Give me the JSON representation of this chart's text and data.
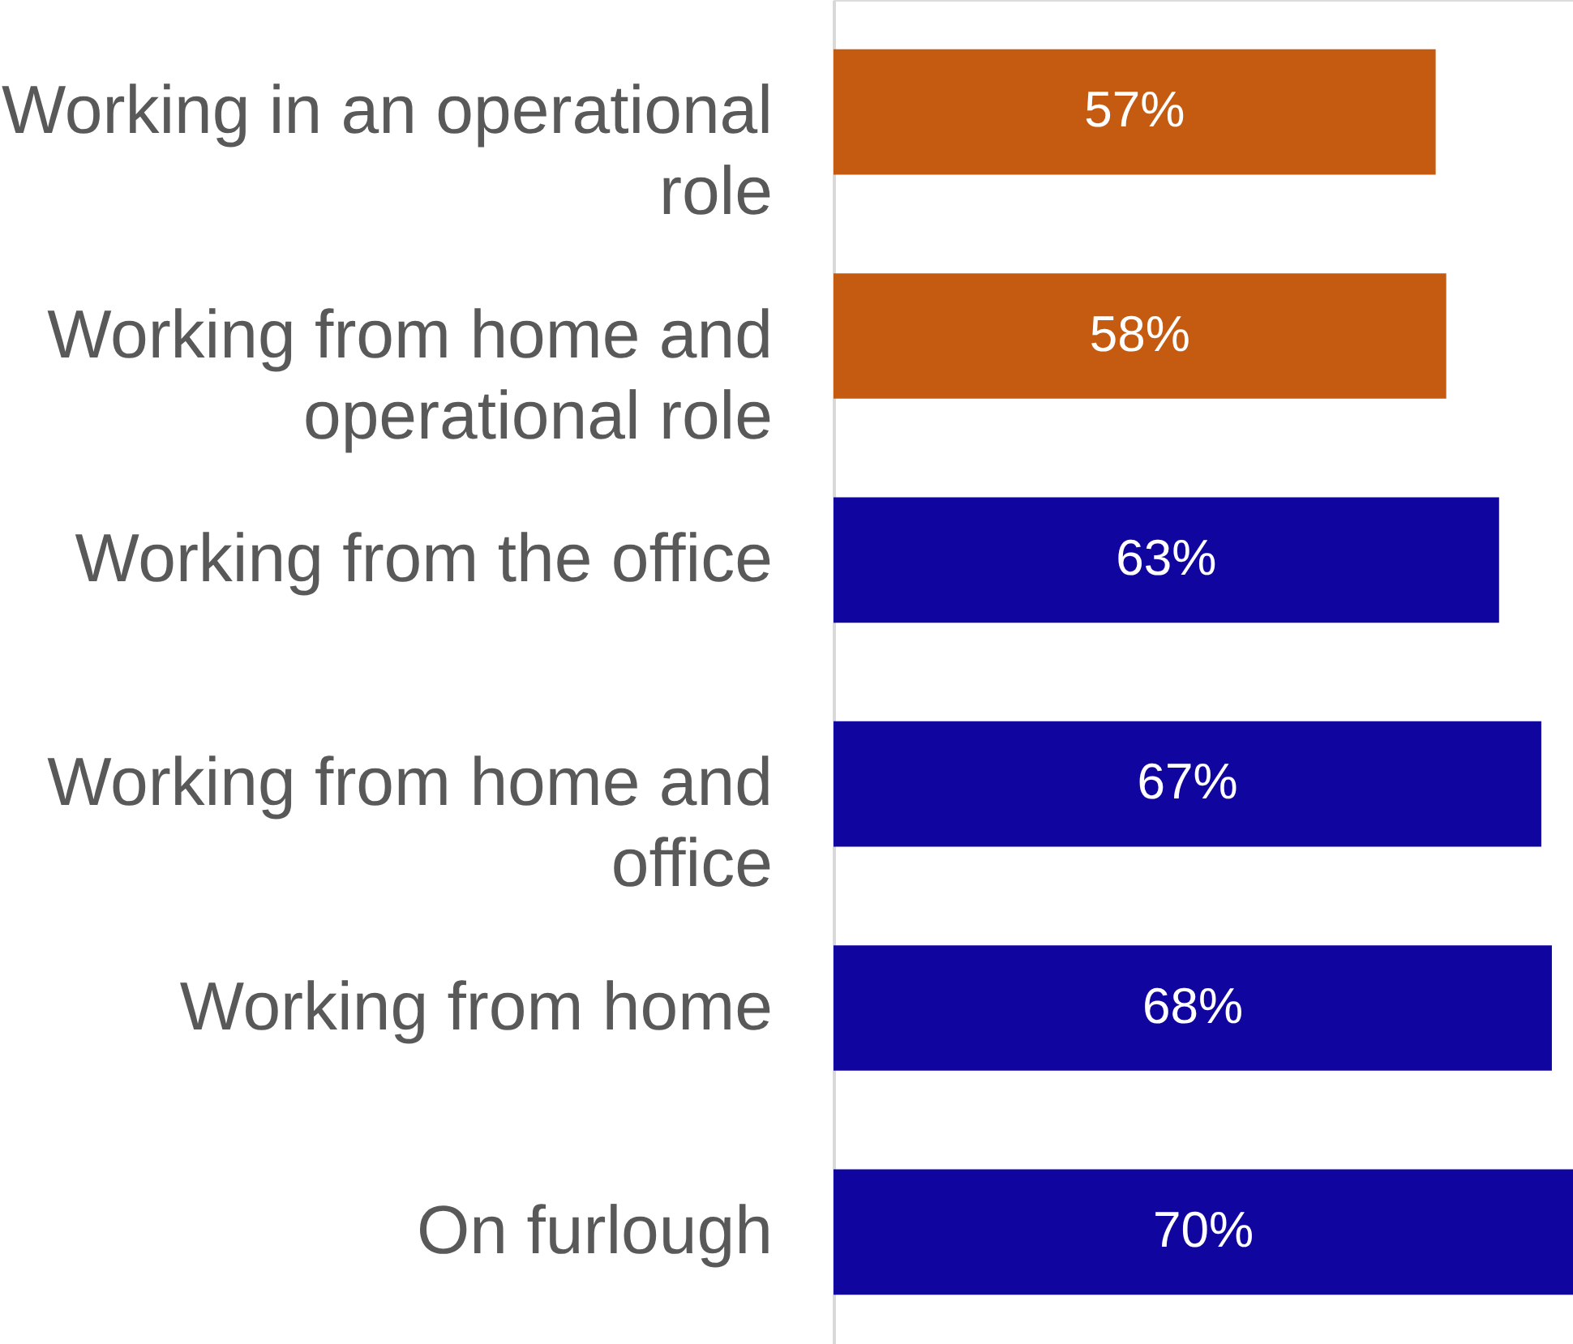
{
  "chart_data": {
    "type": "bar",
    "orientation": "horizontal",
    "categories": [
      "Working in an operational role",
      "Working from home and operational role",
      "Working from the office",
      "Working from home and office",
      "Working from home",
      "On furlough"
    ],
    "values": [
      57,
      58,
      63,
      67,
      68,
      70
    ],
    "colors": [
      "#c55a11",
      "#c55a11",
      "#10069f",
      "#10069f",
      "#10069f",
      "#10069f"
    ],
    "value_labels": [
      "57%",
      "58%",
      "63%",
      "67%",
      "68%",
      "70%"
    ]
  }
}
